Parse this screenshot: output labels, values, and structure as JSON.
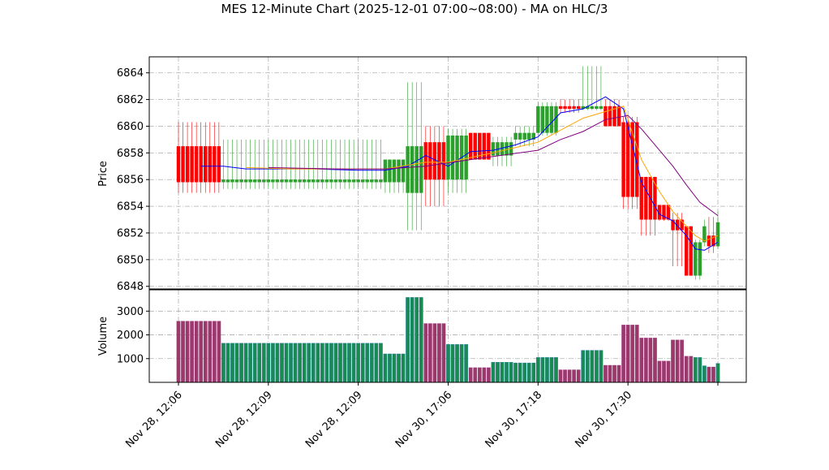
{
  "chart_data": {
    "type": "candlestick",
    "title": "MES 12-Minute Chart (2025-12-01 07:00~08:00) - MA on HLC/3",
    "price_panel": {
      "ylabel": "Price",
      "ylim": [
        6847.8,
        6865.2
      ],
      "yticks": [
        6848,
        6850,
        6852,
        6854,
        6856,
        6858,
        6860,
        6862,
        6864
      ],
      "grid": true
    },
    "volume_panel": {
      "ylabel": "Volume",
      "ylim": [
        0,
        3900
      ],
      "yticks": [
        1000,
        2000,
        3000
      ],
      "grid": true
    },
    "x_ticks": [
      {
        "label": "Nov 28, 12:06",
        "index": 0
      },
      {
        "label": "Nov 28, 12:09",
        "index": 20
      },
      {
        "label": "Nov 28, 12:09",
        "index": 40
      },
      {
        "label": "Nov 30, 17:06",
        "index": 60
      },
      {
        "label": "Nov 30, 17:18",
        "index": 80
      },
      {
        "label": "Nov 30, 17:30",
        "index": 100
      },
      {
        "label": "",
        "index": 120
      }
    ],
    "bar_count": 121,
    "colors": {
      "up": "#2ca02c",
      "down": "#ff0000",
      "ma1": "#0000ff",
      "ma2": "#ffa500",
      "ma3": "#800080",
      "grid": "#b0b0b0"
    },
    "segments": [
      {
        "start": 0,
        "end": 10,
        "open": 6858.5,
        "high": 6860.3,
        "low": 6855.0,
        "close": 6855.8,
        "volume": 2580
      },
      {
        "start": 10,
        "end": 46,
        "open": 6855.8,
        "high": 6859.0,
        "low": 6855.3,
        "close": 6856.0,
        "volume": 1650
      },
      {
        "start": 46,
        "end": 51,
        "open": 6855.8,
        "high": 6857.5,
        "low": 6855.0,
        "close": 6857.5,
        "volume": 1200
      },
      {
        "start": 51,
        "end": 55,
        "open": 6855.0,
        "high": 6863.3,
        "low": 6852.2,
        "close": 6858.5,
        "volume": 3580
      },
      {
        "start": 55,
        "end": 60,
        "open": 6858.8,
        "high": 6860.0,
        "low": 6854.0,
        "close": 6856.0,
        "volume": 2480
      },
      {
        "start": 60,
        "end": 65,
        "open": 6856.0,
        "high": 6859.8,
        "low": 6855.0,
        "close": 6859.3,
        "volume": 1600
      },
      {
        "start": 65,
        "end": 70,
        "open": 6859.5,
        "high": 6859.5,
        "low": 6857.5,
        "close": 6857.5,
        "volume": 620
      },
      {
        "start": 70,
        "end": 75,
        "open": 6857.8,
        "high": 6859.2,
        "low": 6857.0,
        "close": 6858.8,
        "volume": 850
      },
      {
        "start": 75,
        "end": 80,
        "open": 6859.0,
        "high": 6860.0,
        "low": 6858.5,
        "close": 6859.5,
        "volume": 820
      },
      {
        "start": 80,
        "end": 85,
        "open": 6859.5,
        "high": 6861.8,
        "low": 6859.3,
        "close": 6861.5,
        "volume": 1050
      },
      {
        "start": 85,
        "end": 90,
        "open": 6861.5,
        "high": 6862.0,
        "low": 6861.0,
        "close": 6861.3,
        "volume": 530
      },
      {
        "start": 90,
        "end": 95,
        "open": 6861.3,
        "high": 6864.5,
        "low": 6861.2,
        "close": 6861.5,
        "volume": 1350
      },
      {
        "start": 95,
        "end": 99,
        "open": 6861.5,
        "high": 6862.0,
        "low": 6860.0,
        "close": 6860.0,
        "volume": 720
      },
      {
        "start": 99,
        "end": 103,
        "open": 6860.3,
        "high": 6860.7,
        "low": 6853.8,
        "close": 6854.7,
        "volume": 2420
      },
      {
        "start": 103,
        "end": 107,
        "open": 6856.2,
        "high": 6856.2,
        "low": 6851.8,
        "close": 6853.0,
        "volume": 1870
      },
      {
        "start": 107,
        "end": 110,
        "open": 6854.1,
        "high": 6854.1,
        "low": 6852.9,
        "close": 6853.0,
        "volume": 900
      },
      {
        "start": 110,
        "end": 113,
        "open": 6853.0,
        "high": 6853.5,
        "low": 6849.5,
        "close": 6852.2,
        "volume": 1790
      },
      {
        "start": 113,
        "end": 115,
        "open": 6852.5,
        "high": 6852.5,
        "low": 6848.8,
        "close": 6848.8,
        "volume": 1100
      },
      {
        "start": 115,
        "end": 117,
        "open": 6848.8,
        "high": 6851.5,
        "low": 6848.5,
        "close": 6851.3,
        "volume": 1050
      },
      {
        "start": 117,
        "end": 118,
        "open": 6851.3,
        "high": 6853.0,
        "low": 6851.0,
        "close": 6852.5,
        "volume": 700
      },
      {
        "start": 118,
        "end": 120,
        "open": 6851.8,
        "high": 6853.2,
        "low": 6850.5,
        "close": 6851.0,
        "volume": 650
      },
      {
        "start": 120,
        "end": 121,
        "open": 6851.0,
        "high": 6853.6,
        "low": 6850.8,
        "close": 6852.8,
        "volume": 800
      }
    ],
    "moving_averages": [
      {
        "color": "#0000ff",
        "points": [
          [
            5,
            6857.0
          ],
          [
            10,
            6857.0
          ],
          [
            15,
            6856.8
          ],
          [
            20,
            6856.8
          ],
          [
            30,
            6856.8
          ],
          [
            40,
            6856.7
          ],
          [
            46,
            6856.7
          ],
          [
            51,
            6857.0
          ],
          [
            55,
            6857.8
          ],
          [
            60,
            6857.0
          ],
          [
            65,
            6858.1
          ],
          [
            70,
            6858.2
          ],
          [
            75,
            6858.6
          ],
          [
            80,
            6859.2
          ],
          [
            85,
            6861.0
          ],
          [
            90,
            6861.3
          ],
          [
            95,
            6862.2
          ],
          [
            99,
            6861.3
          ],
          [
            103,
            6855.8
          ],
          [
            107,
            6853.4
          ],
          [
            110,
            6852.9
          ],
          [
            113,
            6851.8
          ],
          [
            115,
            6850.8
          ],
          [
            117,
            6850.7
          ],
          [
            120,
            6851.3
          ]
        ]
      },
      {
        "color": "#ffa500",
        "points": [
          [
            15,
            6856.9
          ],
          [
            25,
            6856.8
          ],
          [
            35,
            6856.8
          ],
          [
            46,
            6856.8
          ],
          [
            55,
            6857.3
          ],
          [
            60,
            6857.3
          ],
          [
            70,
            6858.0
          ],
          [
            80,
            6858.8
          ],
          [
            90,
            6860.6
          ],
          [
            95,
            6861.1
          ],
          [
            99,
            6861.5
          ],
          [
            103,
            6857.5
          ],
          [
            107,
            6855.1
          ],
          [
            110,
            6853.6
          ],
          [
            113,
            6852.5
          ],
          [
            115,
            6851.8
          ],
          [
            117,
            6851.4
          ],
          [
            120,
            6851.8
          ]
        ]
      },
      {
        "color": "#800080",
        "points": [
          [
            20,
            6856.9
          ],
          [
            35,
            6856.8
          ],
          [
            46,
            6856.8
          ],
          [
            55,
            6857.0
          ],
          [
            65,
            6857.5
          ],
          [
            80,
            6858.2
          ],
          [
            85,
            6859.0
          ],
          [
            90,
            6859.6
          ],
          [
            95,
            6860.5
          ],
          [
            100,
            6860.8
          ],
          [
            103,
            6859.8
          ],
          [
            107,
            6858.2
          ],
          [
            110,
            6857.0
          ],
          [
            113,
            6855.6
          ],
          [
            116,
            6854.3
          ],
          [
            120,
            6853.3
          ]
        ]
      }
    ]
  }
}
